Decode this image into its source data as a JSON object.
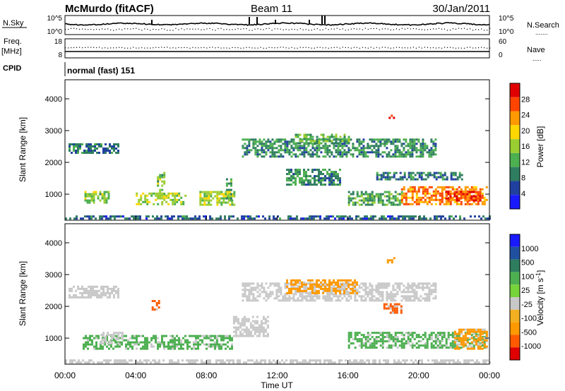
{
  "header": {
    "station": "McMurdo (fitACF)",
    "beam": "Beam 11",
    "date": "30/Jan/2011"
  },
  "noise_panel": {
    "left_label": "N.Sky",
    "left_top_tick": "10^5",
    "left_bottom_tick": "10^0",
    "right_top_tick": "10^5",
    "right_bottom_tick": "10^0",
    "right_label": "N.Search",
    "right_label_marker": "......."
  },
  "freq_panel": {
    "left_label_1": "Freq.",
    "left_label_2": "[MHz]",
    "left_top_tick": "18",
    "left_bottom_tick": "8",
    "right_top_tick": "60",
    "right_bottom_tick": "0",
    "right_label": "Nave",
    "right_label_marker": "....."
  },
  "cpid_panel": {
    "label": "CPID",
    "mode_text": "normal (fast) 151"
  },
  "colors": {
    "power": [
      "#1a1aff",
      "#2040a0",
      "#2e7d5f",
      "#4caf50",
      "#9acd32",
      "#ffd700",
      "#ff9900",
      "#ff4400",
      "#e00000"
    ],
    "velocity": [
      "#e00000",
      "#ff5a00",
      "#ff9900",
      "#f2b020",
      "#c8c8c8",
      "#76d33a",
      "#4caf50",
      "#2e7d5f",
      "#2050a0",
      "#1a1aff"
    ]
  },
  "chart_data": [
    {
      "type": "heatmap",
      "title": "",
      "xlabel": "",
      "ylabel": "Slant Range [km]",
      "x_range_hours": [
        0,
        24
      ],
      "ylim": [
        180,
        4600
      ],
      "yticks": [
        1000,
        2000,
        3000,
        4000
      ],
      "colorbar": {
        "label": "Power [dB]",
        "ticks": [
          "4",
          "8",
          "12",
          "16",
          "20",
          "24",
          "28"
        ],
        "range": [
          0,
          32
        ]
      },
      "echo_regions": [
        {
          "t_start": 0.0,
          "t_end": 24.0,
          "range_min": 200,
          "range_max": 330,
          "value": 7
        },
        {
          "t_start": 0.2,
          "t_end": 3.0,
          "range_min": 2300,
          "range_max": 2600,
          "value": 8
        },
        {
          "t_start": 10.0,
          "t_end": 21.0,
          "range_min": 2200,
          "range_max": 2750,
          "value": 10
        },
        {
          "t_start": 13.0,
          "t_end": 16.0,
          "range_min": 2600,
          "range_max": 2900,
          "value": 12
        },
        {
          "t_start": 1.1,
          "t_end": 2.5,
          "range_min": 750,
          "range_max": 1100,
          "value": 14
        },
        {
          "t_start": 4.0,
          "t_end": 6.8,
          "range_min": 700,
          "range_max": 1050,
          "value": 16
        },
        {
          "t_start": 5.2,
          "t_end": 5.6,
          "range_min": 900,
          "range_max": 1700,
          "value": 14
        },
        {
          "t_start": 7.6,
          "t_end": 9.6,
          "range_min": 700,
          "range_max": 1100,
          "value": 16
        },
        {
          "t_start": 9.1,
          "t_end": 9.4,
          "range_min": 800,
          "range_max": 1500,
          "value": 12
        },
        {
          "t_start": 16.0,
          "t_end": 19.0,
          "range_min": 700,
          "range_max": 1100,
          "value": 12
        },
        {
          "t_start": 19.0,
          "t_end": 23.8,
          "range_min": 700,
          "range_max": 1250,
          "value": 24
        },
        {
          "t_start": 21.5,
          "t_end": 23.5,
          "range_min": 800,
          "range_max": 1100,
          "value": 28
        },
        {
          "t_start": 12.5,
          "t_end": 15.5,
          "range_min": 1300,
          "range_max": 1800,
          "value": 10
        },
        {
          "t_start": 17.6,
          "t_end": 22.5,
          "range_min": 1450,
          "range_max": 1700,
          "value": 8
        },
        {
          "t_start": 18.3,
          "t_end": 18.6,
          "range_min": 3400,
          "range_max": 3500,
          "value": 28
        }
      ]
    },
    {
      "type": "heatmap",
      "title": "",
      "xlabel": "Time UT",
      "ylabel": "Slant Range [km]",
      "x_range_hours": [
        0,
        24
      ],
      "xticks": [
        "00:00",
        "04:00",
        "08:00",
        "12:00",
        "16:00",
        "20:00",
        "00:00"
      ],
      "ylim": [
        180,
        4600
      ],
      "yticks": [
        1000,
        2000,
        3000,
        4000
      ],
      "colorbar": {
        "label": "Velocity [m s^-1]",
        "ticks": [
          "1000",
          "500",
          "100",
          "25",
          "-25",
          "-100",
          "-500",
          "-1000"
        ]
      },
      "echo_regions": [
        {
          "t_start": 0.0,
          "t_end": 24.0,
          "range_min": 200,
          "range_max": 330,
          "value": "25 to -25"
        },
        {
          "t_start": 0.2,
          "t_end": 3.0,
          "range_min": 2300,
          "range_max": 2650,
          "value": "25 to -25"
        },
        {
          "t_start": 10.0,
          "t_end": 21.0,
          "range_min": 2200,
          "range_max": 2750,
          "value": "25 to -25"
        },
        {
          "t_start": 12.5,
          "t_end": 16.5,
          "range_min": 2450,
          "range_max": 2850,
          "value": "-100 to -500"
        },
        {
          "t_start": 1.0,
          "t_end": 9.5,
          "range_min": 700,
          "range_max": 1100,
          "value": "100 to 500"
        },
        {
          "t_start": 2.0,
          "t_end": 3.2,
          "range_min": 850,
          "range_max": 1200,
          "value": "25 to -25"
        },
        {
          "t_start": 9.5,
          "t_end": 11.5,
          "range_min": 1100,
          "range_max": 1700,
          "value": "25 to -25"
        },
        {
          "t_start": 16.0,
          "t_end": 23.8,
          "range_min": 700,
          "range_max": 1200,
          "value": "100 to 500"
        },
        {
          "t_start": 22.0,
          "t_end": 23.9,
          "range_min": 700,
          "range_max": 1300,
          "value": "-100 to -500"
        },
        {
          "t_start": 18.0,
          "t_end": 19.0,
          "range_min": 1800,
          "range_max": 2100,
          "value": "-500 to -1000"
        },
        {
          "t_start": 4.9,
          "t_end": 5.3,
          "range_min": 1900,
          "range_max": 2200,
          "value": "-500 to -1000"
        },
        {
          "t_start": 18.2,
          "t_end": 18.6,
          "range_min": 3400,
          "range_max": 3550,
          "value": "-100 to -500"
        }
      ]
    }
  ]
}
